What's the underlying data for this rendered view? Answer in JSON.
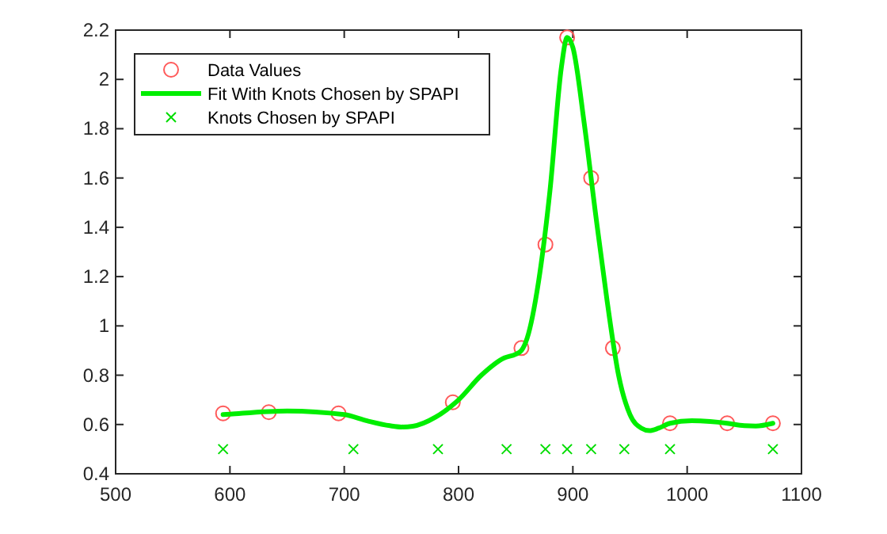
{
  "chart_data": {
    "type": "scatter",
    "xlim": [
      500,
      1100
    ],
    "ylim": [
      0.4,
      2.2
    ],
    "xticks": [
      500,
      600,
      700,
      800,
      900,
      1000,
      1100
    ],
    "yticks": [
      0.4,
      0.6,
      0.8,
      1,
      1.2,
      1.4,
      1.6,
      1.8,
      2,
      2.2
    ],
    "grid": false,
    "legend": "top left",
    "series": [
      {
        "name": "Data Values",
        "marker": "circle",
        "color": "#ff5a5a",
        "x": [
          594,
          634,
          695,
          795,
          855,
          876,
          895,
          916,
          935,
          985,
          1035,
          1075
        ],
        "values": [
          0.645,
          0.65,
          0.645,
          0.69,
          0.91,
          1.33,
          2.17,
          1.6,
          0.91,
          0.605,
          0.605,
          0.605
        ]
      },
      {
        "name": "Fit With Knots Chosen by SPAPI",
        "type": "line",
        "marker": "none",
        "line_style": "solid",
        "color": "#00ee00",
        "x": [
          594,
          600,
          650,
          700,
          720,
          740,
          750,
          760,
          780,
          800,
          820,
          840,
          850,
          855,
          860,
          870,
          880,
          890,
          895,
          900,
          910,
          920,
          930,
          940,
          950,
          960,
          967,
          975,
          985,
          1004,
          1020,
          1035,
          1050,
          1060,
          1075
        ],
        "values": [
          0.64,
          0.642,
          0.655,
          0.64,
          0.615,
          0.595,
          0.59,
          0.593,
          0.63,
          0.7,
          0.8,
          0.87,
          0.885,
          0.9,
          0.95,
          1.18,
          1.55,
          2.05,
          2.17,
          2.13,
          1.82,
          1.45,
          1.1,
          0.8,
          0.64,
          0.585,
          0.575,
          0.585,
          0.605,
          0.615,
          0.612,
          0.605,
          0.595,
          0.594,
          0.605
        ]
      },
      {
        "name": "Knots Chosen by SPAPI",
        "marker": "cross",
        "color": "#00dd00",
        "x": [
          594,
          708,
          782,
          842,
          876,
          895,
          916,
          945,
          985,
          1075
        ],
        "values": [
          0.5,
          0.5,
          0.5,
          0.5,
          0.5,
          0.5,
          0.5,
          0.5,
          0.5,
          0.5
        ]
      }
    ]
  }
}
